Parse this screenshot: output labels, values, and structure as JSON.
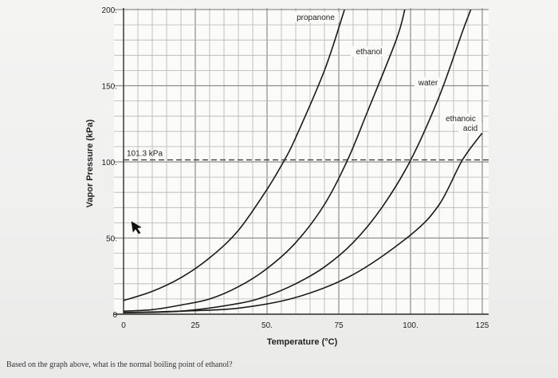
{
  "chart_data": {
    "type": "line",
    "xlabel": "Temperature (°C)",
    "ylabel": "Vapor Pressure (kPa)",
    "xlim": [
      0,
      125
    ],
    "ylim": [
      0,
      200
    ],
    "x_ticks": [
      "0",
      "25",
      "50.",
      "75",
      "100.",
      "125"
    ],
    "y_ticks": [
      "0",
      "50.",
      "100.",
      "150.",
      "200."
    ],
    "grid": true,
    "reference_line": {
      "y": 101.3,
      "label": "101.3 kPa",
      "style": "dashed"
    },
    "series": [
      {
        "name": "propanone",
        "points": [
          [
            0,
            9
          ],
          [
            10,
            15
          ],
          [
            20,
            24
          ],
          [
            30,
            37
          ],
          [
            40,
            55
          ],
          [
            50,
            82
          ],
          [
            56,
            101
          ],
          [
            60,
            116
          ],
          [
            70,
            160
          ],
          [
            77,
            200
          ]
        ]
      },
      {
        "name": "ethanol",
        "points": [
          [
            0,
            2
          ],
          [
            10,
            3
          ],
          [
            20,
            6
          ],
          [
            30,
            10
          ],
          [
            40,
            18
          ],
          [
            50,
            30
          ],
          [
            60,
            47
          ],
          [
            70,
            72
          ],
          [
            78,
            101
          ],
          [
            85,
            133
          ],
          [
            95,
            180
          ],
          [
            98,
            200
          ]
        ]
      },
      {
        "name": "water",
        "points": [
          [
            0,
            1
          ],
          [
            20,
            2
          ],
          [
            40,
            7
          ],
          [
            50,
            12
          ],
          [
            60,
            20
          ],
          [
            70,
            31
          ],
          [
            80,
            47
          ],
          [
            90,
            70
          ],
          [
            100,
            101
          ],
          [
            110,
            143
          ],
          [
            118,
            185
          ],
          [
            121,
            200
          ]
        ]
      },
      {
        "name": "ethanoic acid",
        "points": [
          [
            0,
            1
          ],
          [
            20,
            2
          ],
          [
            40,
            4
          ],
          [
            60,
            11
          ],
          [
            80,
            26
          ],
          [
            100,
            52
          ],
          [
            110,
            72
          ],
          [
            118,
            101
          ],
          [
            125,
            119
          ]
        ]
      }
    ]
  },
  "footer": {
    "question": "Based on the graph above, what is the normal boiling point of ethanol?"
  }
}
